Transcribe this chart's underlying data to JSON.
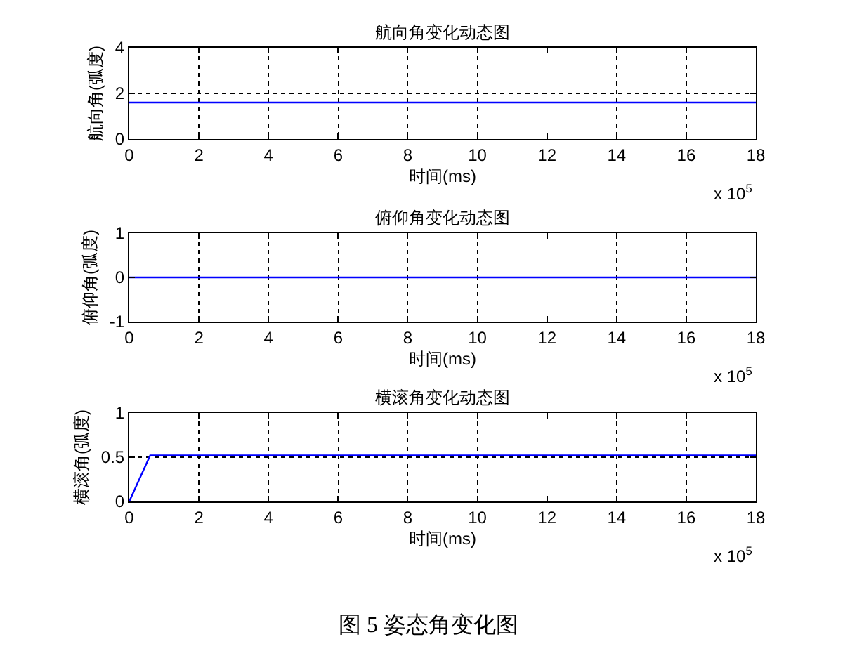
{
  "chart_data": [
    {
      "type": "line",
      "title": "航向角变化动态图",
      "xlabel": "时间(ms)",
      "ylabel": "航向角(弧度)",
      "x": [
        0,
        18
      ],
      "series": [
        {
          "color": "#0000ff",
          "values": [
            1.6,
            1.6
          ]
        }
      ],
      "xlim": [
        0,
        18
      ],
      "xticks": [
        0,
        2,
        4,
        6,
        8,
        10,
        12,
        14,
        16,
        18
      ],
      "ylim": [
        0,
        4
      ],
      "yticks": [
        0,
        2,
        4
      ],
      "grid": true,
      "annotations": [
        "x 10$^{5}$"
      ]
    },
    {
      "type": "line",
      "title": "俯仰角变化动态图",
      "xlabel": "时间(ms)",
      "ylabel": "俯仰角(弧度)",
      "x": [
        0,
        18
      ],
      "series": [
        {
          "color": "#0000ff",
          "values": [
            0,
            0
          ]
        }
      ],
      "xlim": [
        0,
        18
      ],
      "xticks": [
        0,
        2,
        4,
        6,
        8,
        10,
        12,
        14,
        16,
        18
      ],
      "ylim": [
        -1,
        1
      ],
      "yticks": [
        -1,
        0,
        1
      ],
      "grid": true,
      "annotations": [
        "x 10$^{5}$"
      ]
    },
    {
      "type": "line",
      "title": "横滚角变化动态图",
      "xlabel": "时间(ms)",
      "ylabel": "横滚角(弧度)",
      "x": [
        0,
        0.6,
        18
      ],
      "series": [
        {
          "color": "#0000ff",
          "values": [
            0,
            0.52,
            0.52
          ]
        }
      ],
      "xlim": [
        0,
        18
      ],
      "xticks": [
        0,
        2,
        4,
        6,
        8,
        10,
        12,
        14,
        16,
        18
      ],
      "ylim": [
        0,
        1
      ],
      "yticks": [
        0,
        0.5,
        1
      ],
      "grid": true,
      "annotations": [
        "x 10$^{5}$",
        "图 5 姿态角变化图"
      ]
    }
  ]
}
